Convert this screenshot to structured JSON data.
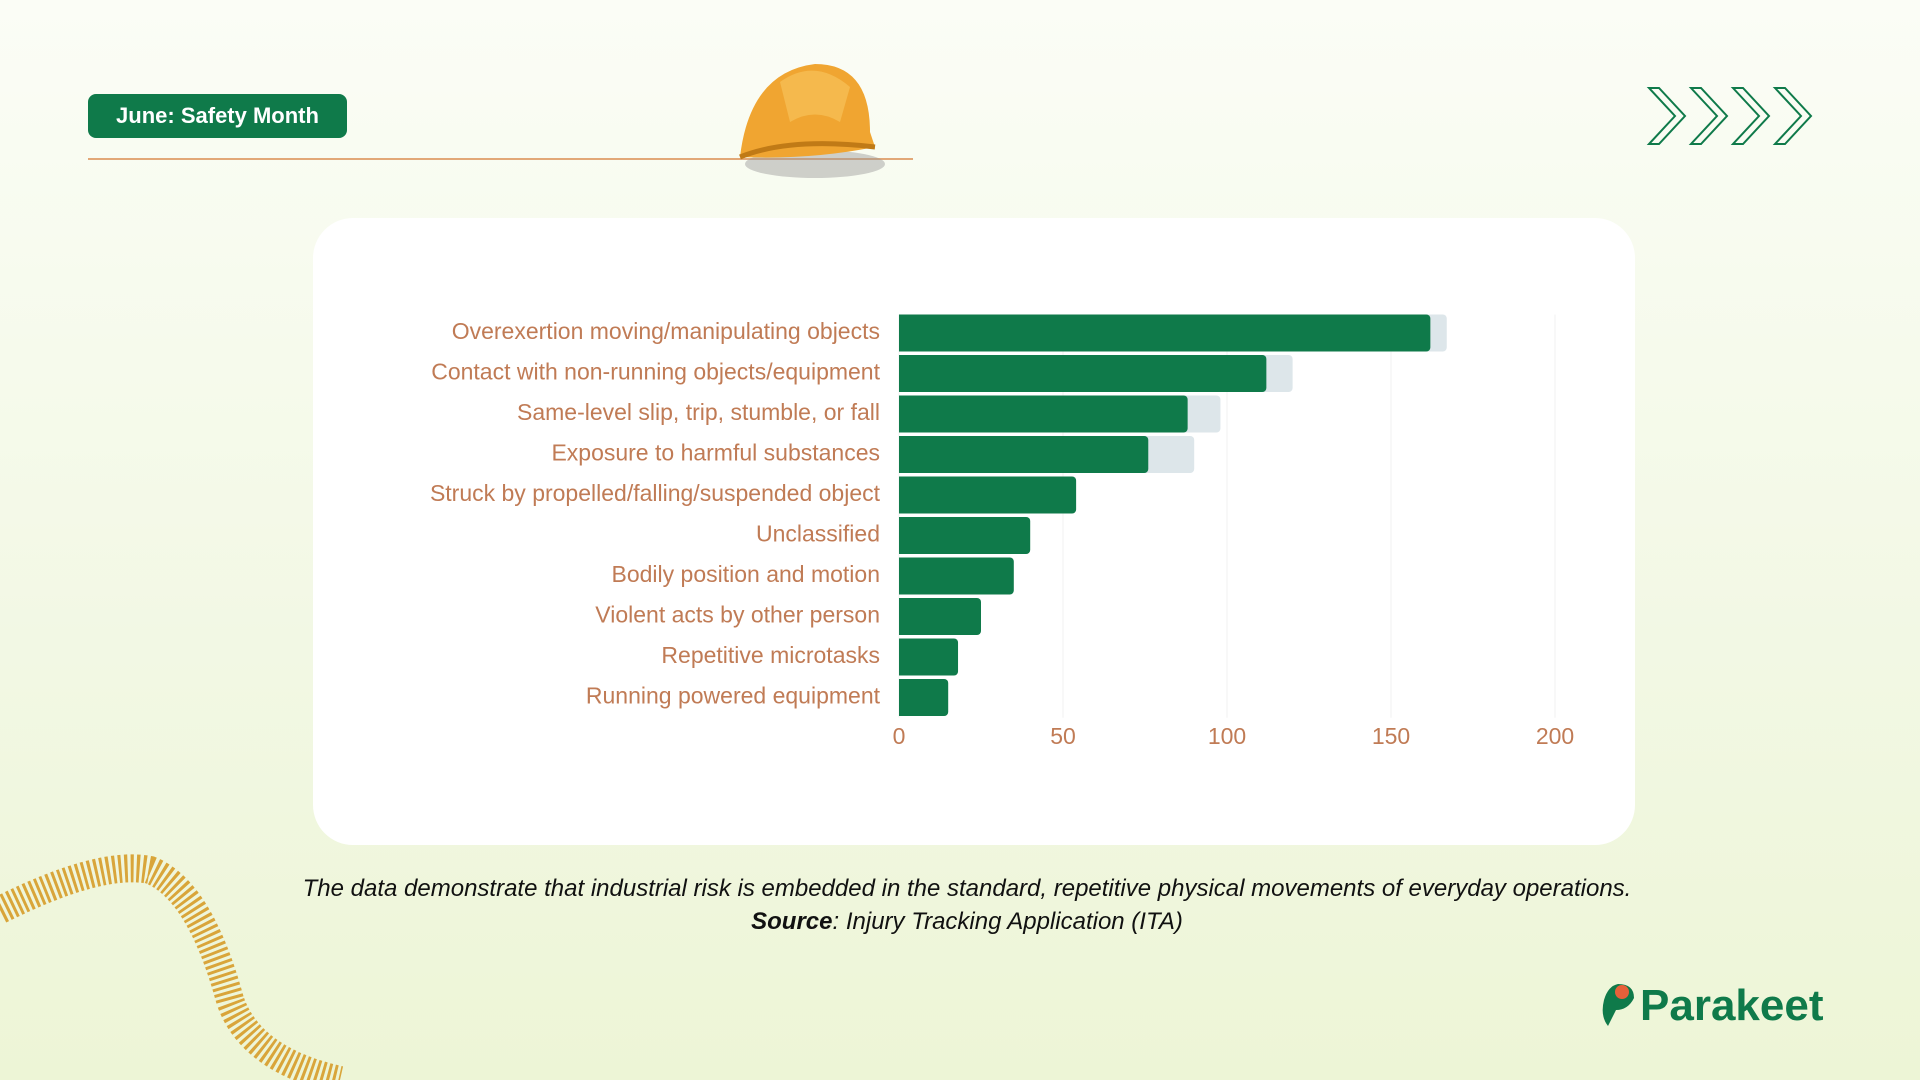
{
  "header": {
    "badge": "June: Safety Month"
  },
  "chart_data": {
    "type": "stacked-bar-horizontal",
    "categories": [
      "Overexertion moving/manipulating objects",
      "Contact with non-running objects/equipment",
      "Same-level slip, trip, stumble, or fall",
      "Exposure to harmful substances",
      "Struck by propelled/falling/suspended object",
      "Unclassified",
      "Bodily position and motion",
      "Violent acts by other person",
      "Repetitive microtasks",
      "Running powered equipment"
    ],
    "series": [
      {
        "color": "#0f7a4a",
        "values": [
          162,
          112,
          88,
          76,
          54,
          40,
          35,
          25,
          18,
          15
        ]
      },
      {
        "color": "#dde6ea",
        "values": [
          5,
          8,
          10,
          14,
          null,
          null,
          null,
          null,
          null,
          null
        ]
      }
    ],
    "xlim": [
      0,
      200
    ],
    "xticks": [
      0,
      50,
      100,
      150,
      200
    ],
    "grid": true
  },
  "caption": {
    "text1": "The data demonstrate that industrial risk is embedded in the standard, repetitive physical movements of everyday operations. ",
    "bold": "Source",
    "text2": ": Injury Tracking Application (ITA)"
  },
  "logo": "Parakeet"
}
